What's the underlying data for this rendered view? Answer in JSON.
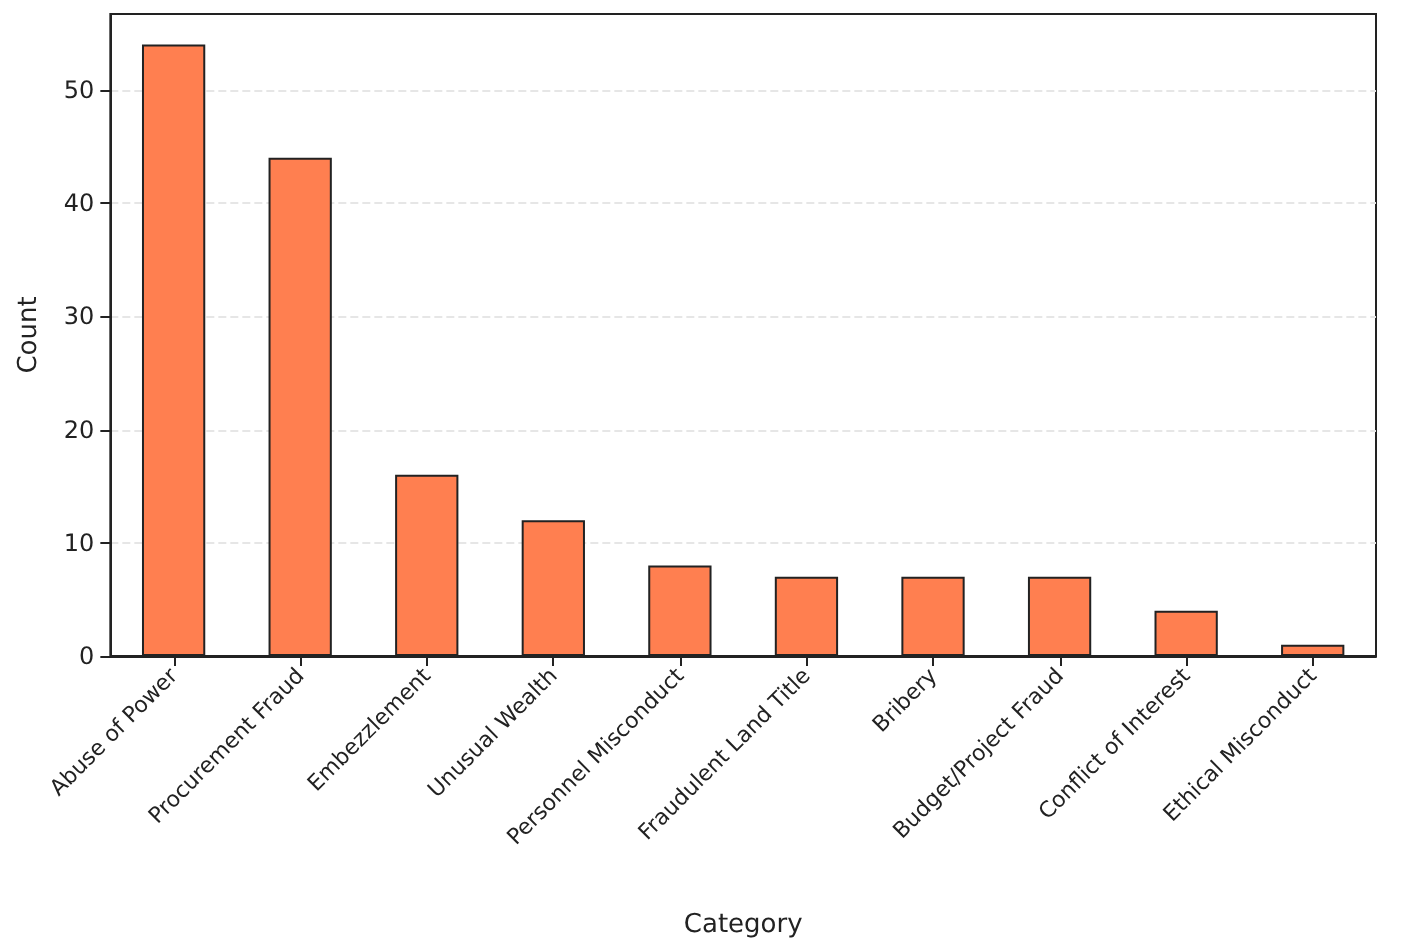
{
  "chart_data": {
    "type": "bar",
    "xlabel": "Category",
    "ylabel": "Count",
    "categories": [
      "Abuse of Power",
      "Procurement Fraud",
      "Embezzlement",
      "Unusual Wealth",
      "Personnel Misconduct",
      "Fraudulent Land Title",
      "Bribery",
      "Budget/Project Fraud",
      "Conflict of Interest",
      "Ethical Misconduct"
    ],
    "values": [
      54,
      44,
      16,
      12,
      8,
      7,
      7,
      7,
      4,
      1
    ],
    "color": "#ff7f50",
    "ylim": [
      0,
      56.7
    ],
    "yticks": [
      0,
      10,
      20,
      30,
      40,
      50
    ],
    "grid": "y"
  }
}
